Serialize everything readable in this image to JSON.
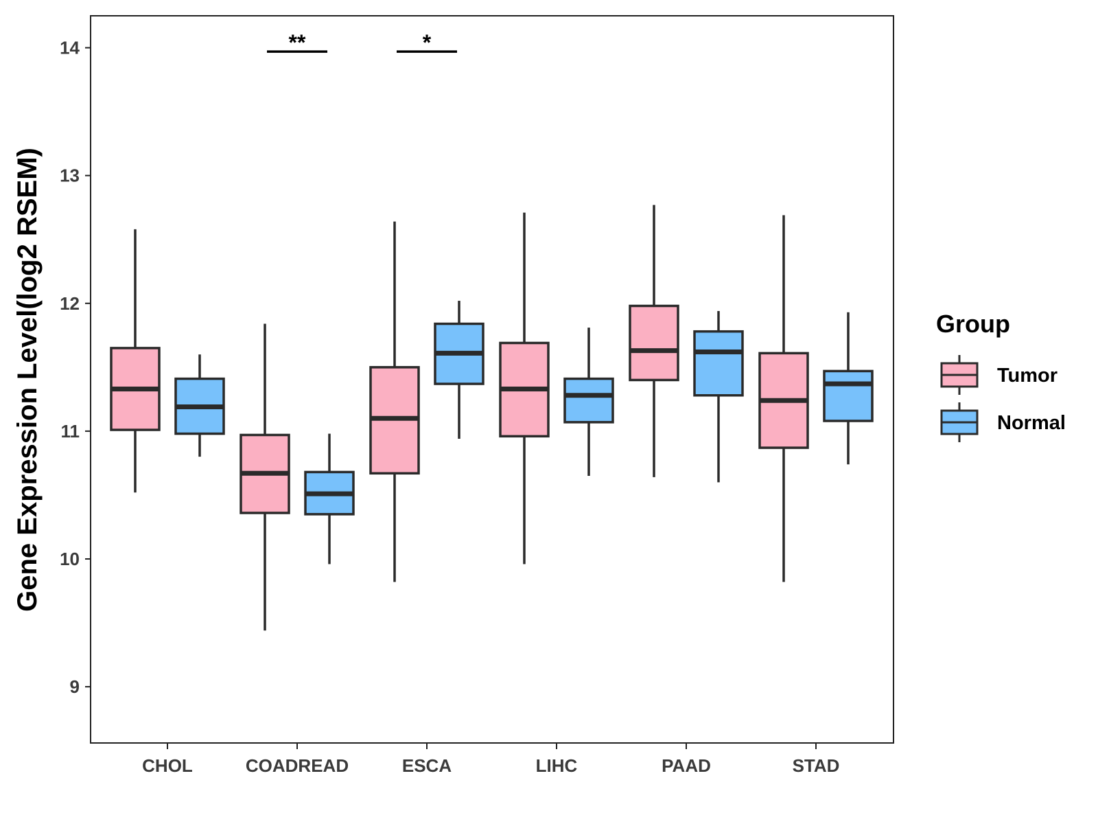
{
  "chart_data": {
    "type": "boxplot",
    "title": "",
    "xlabel": "",
    "ylabel": "Gene Expression Level(log2 RSEM)",
    "ylim": [
      8.56,
      14.25
    ],
    "yticks": [
      9,
      10,
      11,
      12,
      13,
      14
    ],
    "grid": false,
    "legend": {
      "title": "Group",
      "position": "right",
      "entries": [
        {
          "name": "Tumor",
          "color": "#fbb0c2"
        },
        {
          "name": "Normal",
          "color": "#78c1fb"
        }
      ]
    },
    "categories": [
      "CHOL",
      "COADREAD",
      "ESCA",
      "LIHC",
      "PAAD",
      "STAD"
    ],
    "series": [
      {
        "name": "Tumor",
        "color": "#fbb0c2",
        "boxes": [
          {
            "min": 10.52,
            "q1": 11.01,
            "median": 11.33,
            "q3": 11.65,
            "max": 12.58
          },
          {
            "min": 9.44,
            "q1": 10.36,
            "median": 10.67,
            "q3": 10.97,
            "max": 11.84
          },
          {
            "min": 9.82,
            "q1": 10.67,
            "median": 11.1,
            "q3": 11.5,
            "max": 12.64
          },
          {
            "min": 9.96,
            "q1": 10.96,
            "median": 11.33,
            "q3": 11.69,
            "max": 12.71
          },
          {
            "min": 10.64,
            "q1": 11.4,
            "median": 11.63,
            "q3": 11.98,
            "max": 12.77
          },
          {
            "min": 9.82,
            "q1": 10.87,
            "median": 11.24,
            "q3": 11.61,
            "max": 12.69
          }
        ]
      },
      {
        "name": "Normal",
        "color": "#78c1fb",
        "boxes": [
          {
            "min": 10.8,
            "q1": 10.98,
            "median": 11.19,
            "q3": 11.41,
            "max": 11.6
          },
          {
            "min": 9.96,
            "q1": 10.35,
            "median": 10.51,
            "q3": 10.68,
            "max": 10.98
          },
          {
            "min": 10.94,
            "q1": 11.37,
            "median": 11.61,
            "q3": 11.84,
            "max": 12.02
          },
          {
            "min": 10.65,
            "q1": 11.07,
            "median": 11.28,
            "q3": 11.41,
            "max": 11.81
          },
          {
            "min": 10.6,
            "q1": 11.28,
            "median": 11.62,
            "q3": 11.78,
            "max": 11.94
          },
          {
            "min": 10.74,
            "q1": 11.08,
            "median": 11.37,
            "q3": 11.47,
            "max": 11.93
          }
        ]
      }
    ],
    "annotations": [
      {
        "category": "COADREAD",
        "label": "**",
        "y": 13.97
      },
      {
        "category": "ESCA",
        "label": "*",
        "y": 13.97
      }
    ]
  }
}
